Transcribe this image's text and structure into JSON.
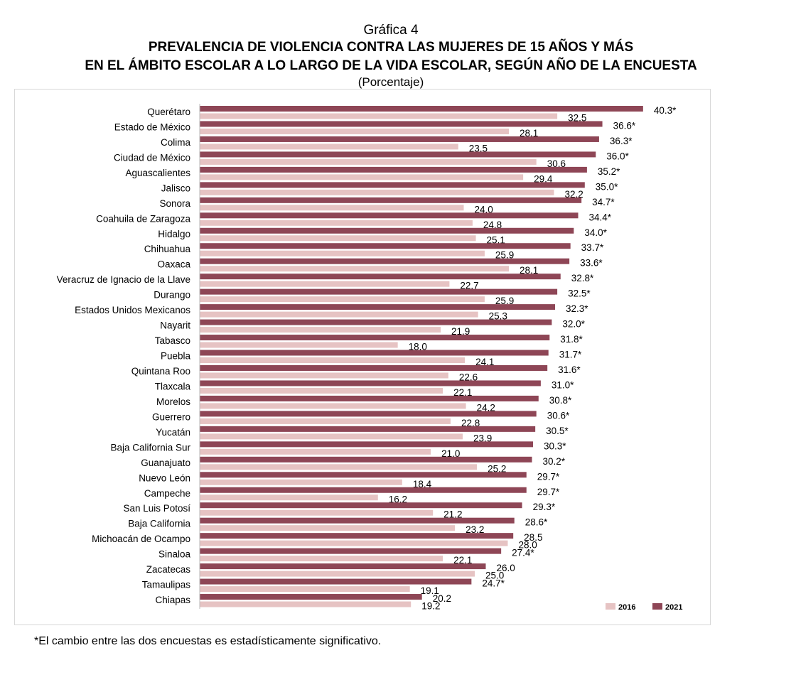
{
  "chart_data": {
    "type": "bar",
    "orientation": "horizontal",
    "title": "Gráfica 4",
    "subtitle_lines": [
      "PREVALENCIA DE VIOLENCIA CONTRA LAS MUJERES DE 15 AÑOS Y MÁS",
      "EN EL ÁMBITO ESCOLAR A LO LARGO DE LA VIDA ESCOLAR, SEGÚN AÑO DE LA ENCUESTA"
    ],
    "unit_note": "(Porcentaje)",
    "xlim": [
      0,
      42
    ],
    "grid": false,
    "legend_position": "bottom-right",
    "categories": [
      "Querétaro",
      "Estado de México",
      "Colima",
      "Ciudad de México",
      "Aguascalientes",
      "Jalisco",
      "Sonora",
      "Coahuila de Zaragoza",
      "Hidalgo",
      "Chihuahua",
      "Oaxaca",
      "Veracruz de Ignacio de la Llave",
      "Durango",
      "Estados Unidos Mexicanos",
      "Nayarit",
      "Tabasco",
      "Puebla",
      "Quintana Roo",
      "Tlaxcala",
      "Morelos",
      "Guerrero",
      "Yucatán",
      "Baja California Sur",
      "Guanajuato",
      "Nuevo León",
      "Campeche",
      "San Luis Potosí",
      "Baja California",
      "Michoacán de Ocampo",
      "Sinaloa",
      "Zacatecas",
      "Tamaulipas",
      "Chiapas"
    ],
    "series": [
      {
        "name": "2021",
        "color": "#8e4656",
        "values": [
          40.3,
          36.6,
          36.3,
          36.0,
          35.2,
          35.0,
          34.7,
          34.4,
          34.0,
          33.7,
          33.6,
          32.8,
          32.5,
          32.3,
          32.0,
          31.8,
          31.7,
          31.6,
          31.0,
          30.8,
          30.6,
          30.5,
          30.3,
          30.2,
          29.7,
          29.7,
          29.3,
          28.6,
          28.5,
          27.4,
          26.0,
          24.7,
          20.2
        ],
        "labels": [
          "40.3*",
          "36.6*",
          "36.3*",
          "36.0*",
          "35.2*",
          "35.0*",
          "34.7*",
          "34.4*",
          "34.0*",
          "33.7*",
          "33.6*",
          "32.8*",
          "32.5*",
          "32.3*",
          "32.0*",
          "31.8*",
          "31.7*",
          "31.6*",
          "31.0*",
          "30.8*",
          "30.6*",
          "30.5*",
          "30.3*",
          "30.2*",
          "29.7*",
          "29.7*",
          "29.3*",
          "28.6*",
          "28.5",
          "27.4*",
          "26.0",
          "24.7*",
          "20.2"
        ]
      },
      {
        "name": "2016",
        "color": "#e6c3c3",
        "values": [
          32.5,
          28.1,
          23.5,
          30.6,
          29.4,
          32.2,
          24.0,
          24.8,
          25.1,
          25.9,
          28.1,
          22.7,
          25.9,
          25.3,
          21.9,
          18.0,
          24.1,
          22.6,
          22.1,
          24.2,
          22.8,
          23.9,
          21.0,
          25.2,
          18.4,
          16.2,
          21.2,
          23.2,
          28.0,
          22.1,
          25.0,
          19.1,
          19.2
        ],
        "labels": [
          "32.5",
          "28.1",
          "23.5",
          "30.6",
          "29.4",
          "32.2",
          "24.0",
          "24.8",
          "25.1",
          "25.9",
          "28.1",
          "22.7",
          "25.9",
          "25.3",
          "21.9",
          "18.0",
          "24.1",
          "22.6",
          "22.1",
          "24.2",
          "22.8",
          "23.9",
          "21.0",
          "25.2",
          "18.4",
          "16.2",
          "21.2",
          "23.2",
          "28.0",
          "22.1",
          "25.0",
          "19.1",
          "19.2"
        ]
      }
    ],
    "legend": [
      "2016",
      "2021"
    ]
  },
  "footnote": "*El cambio entre las dos encuestas es estadísticamente significativo."
}
